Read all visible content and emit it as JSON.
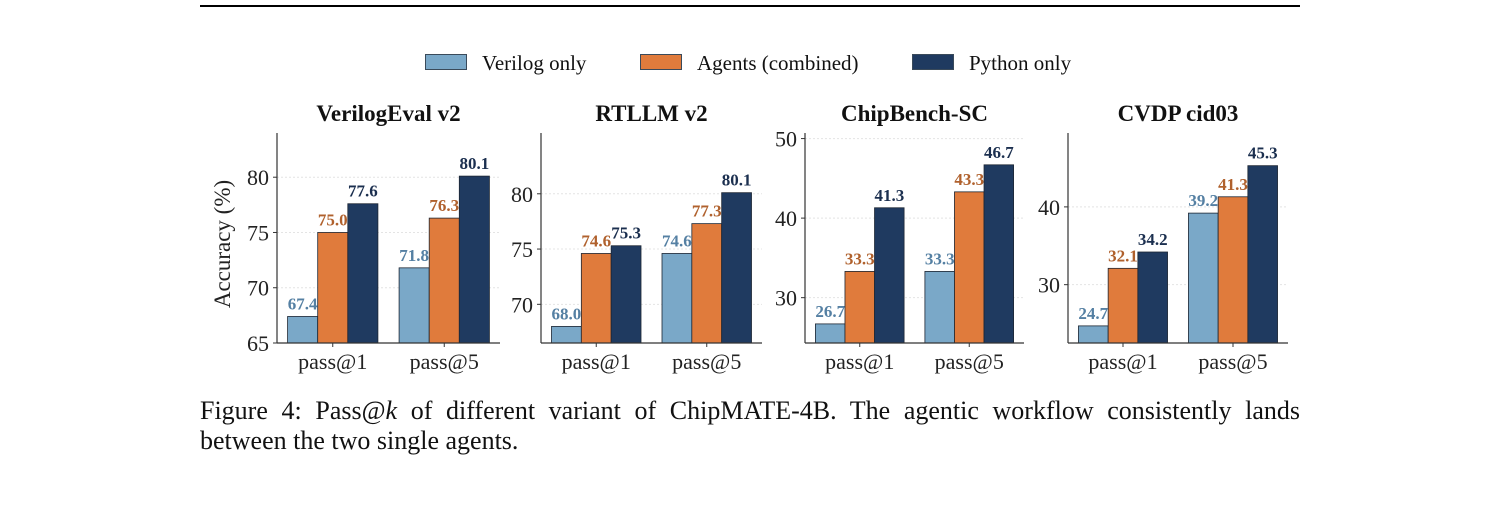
{
  "legend": [
    {
      "label": "Verilog only",
      "color": "#7aa8c8"
    },
    {
      "label": "Agents (combined)",
      "color": "#e07b3c"
    },
    {
      "label": "Python only",
      "color": "#1f3a60"
    }
  ],
  "label_colors": [
    "#5580a3",
    "#b0612d",
    "#1b2f4f"
  ],
  "chart_data": [
    {
      "type": "bar",
      "title": "VerilogEval v2",
      "ylabel": "Accuracy (%)",
      "categories": [
        "pass@1",
        "pass@5"
      ],
      "ylim": [
        65,
        84
      ],
      "yticks": [
        65,
        70,
        75,
        80
      ],
      "series": [
        {
          "name": "Verilog only",
          "values": [
            67.4,
            71.8
          ]
        },
        {
          "name": "Agents (combined)",
          "values": [
            75.0,
            76.3
          ]
        },
        {
          "name": "Python only",
          "values": [
            77.6,
            80.1
          ]
        }
      ],
      "grid": true
    },
    {
      "type": "bar",
      "title": "RTLLM v2",
      "ylabel": "",
      "categories": [
        "pass@1",
        "pass@5"
      ],
      "ylim": [
        66.5,
        85.5
      ],
      "yticks": [
        70,
        75,
        80
      ],
      "series": [
        {
          "name": "Verilog only",
          "values": [
            68.0,
            74.6
          ]
        },
        {
          "name": "Agents (combined)",
          "values": [
            74.6,
            77.3
          ]
        },
        {
          "name": "Python only",
          "values": [
            75.3,
            80.1
          ]
        }
      ],
      "grid": true
    },
    {
      "type": "bar",
      "title": "ChipBench-SC",
      "ylabel": "",
      "categories": [
        "pass@1",
        "pass@5"
      ],
      "ylim": [
        24.3,
        50.7
      ],
      "yticks": [
        30,
        40,
        50
      ],
      "series": [
        {
          "name": "Verilog only",
          "values": [
            26.7,
            33.3
          ]
        },
        {
          "name": "Agents (combined)",
          "values": [
            33.3,
            43.3
          ]
        },
        {
          "name": "Python only",
          "values": [
            41.3,
            46.7
          ]
        }
      ],
      "grid": true
    },
    {
      "type": "bar",
      "title": "CVDP cid03",
      "ylabel": "",
      "categories": [
        "pass@1",
        "pass@5"
      ],
      "ylim": [
        22.5,
        49.5
      ],
      "yticks": [
        30,
        40
      ],
      "series": [
        {
          "name": "Verilog only",
          "values": [
            24.7,
            39.2
          ]
        },
        {
          "name": "Agents (combined)",
          "values": [
            32.1,
            41.3
          ]
        },
        {
          "name": "Python only",
          "values": [
            34.2,
            45.3
          ]
        }
      ],
      "grid": true
    }
  ],
  "caption": {
    "prefix": "Figure 4: Pass@",
    "k": "k",
    "rest": " of different variant of ChipMATE-4B. The agentic workflow consistently lands between the two single agents."
  }
}
